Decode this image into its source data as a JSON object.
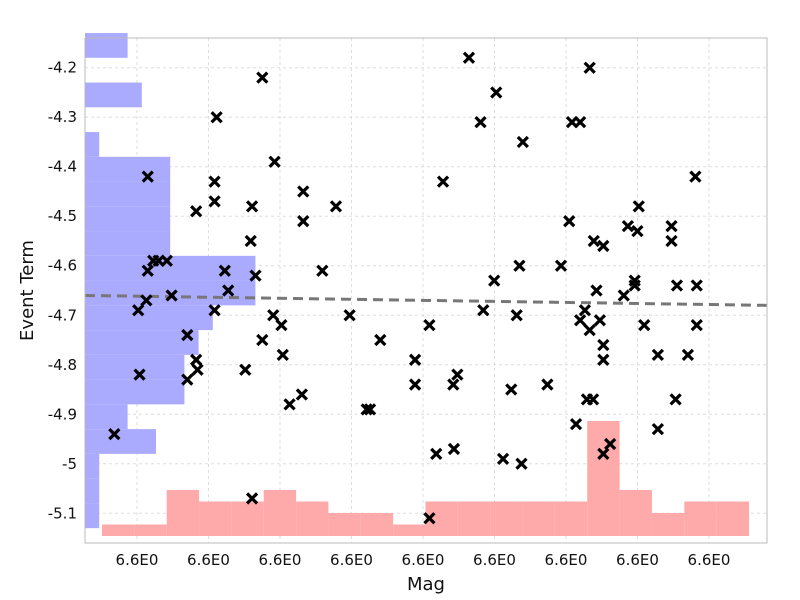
{
  "chart_data": {
    "type": "scatter",
    "xlabel": "Mag",
    "ylabel": "Event Term",
    "x_tick_labels": [
      "6.6E0",
      "6.6E0",
      "6.6E0",
      "6.6E0",
      "6.6E0",
      "6.6E0",
      "6.6E0",
      "6.6E0",
      "6.6E0"
    ],
    "y_ticks": [
      -4.2,
      -4.3,
      -4.4,
      -4.5,
      -4.6,
      -4.7,
      -4.8,
      -4.9,
      -5.0,
      -5.1
    ],
    "y_tick_labels": [
      "-4.2",
      "-4.3",
      "-4.4",
      "-4.5",
      "-4.6",
      "-4.7",
      "-4.8",
      "-4.9",
      "-5",
      "-5.1"
    ],
    "xlim": [
      0,
      1
    ],
    "ylim": [
      -5.16,
      -4.14
    ],
    "grid": true,
    "marker": "x",
    "colors": {
      "points": "#000000",
      "trend": "#777777",
      "y_hist": "#aaaaff",
      "x_hist": "#ffaaaa",
      "grid": "#dddddd",
      "frame": "#bbbbbb"
    },
    "points": [
      [
        0.043,
        -4.94
      ],
      [
        0.08,
        -4.82
      ],
      [
        0.078,
        -4.69
      ],
      [
        0.09,
        -4.67
      ],
      [
        0.092,
        -4.61
      ],
      [
        0.1,
        -4.59
      ],
      [
        0.108,
        -4.59
      ],
      [
        0.12,
        -4.59
      ],
      [
        0.127,
        -4.66
      ],
      [
        0.092,
        -4.42
      ],
      [
        0.15,
        -4.83
      ],
      [
        0.15,
        -4.74
      ],
      [
        0.163,
        -4.79
      ],
      [
        0.165,
        -4.81
      ],
      [
        0.163,
        -4.49
      ],
      [
        0.19,
        -4.43
      ],
      [
        0.19,
        -4.47
      ],
      [
        0.193,
        -4.3
      ],
      [
        0.19,
        -4.69
      ],
      [
        0.205,
        -4.61
      ],
      [
        0.21,
        -4.65
      ],
      [
        0.235,
        -4.81
      ],
      [
        0.245,
        -4.48
      ],
      [
        0.243,
        -4.55
      ],
      [
        0.25,
        -4.62
      ],
      [
        0.26,
        -4.75
      ],
      [
        0.26,
        -4.22
      ],
      [
        0.278,
        -4.39
      ],
      [
        0.276,
        -4.7
      ],
      [
        0.288,
        -4.72
      ],
      [
        0.29,
        -4.78
      ],
      [
        0.3,
        -4.88
      ],
      [
        0.318,
        -4.86
      ],
      [
        0.32,
        -4.45
      ],
      [
        0.32,
        -4.51
      ],
      [
        0.348,
        -4.61
      ],
      [
        0.368,
        -4.48
      ],
      [
        0.388,
        -4.7
      ],
      [
        0.413,
        -4.89
      ],
      [
        0.418,
        -4.89
      ],
      [
        0.433,
        -4.75
      ],
      [
        0.484,
        -4.79
      ],
      [
        0.484,
        -4.84
      ],
      [
        0.505,
        -4.72
      ],
      [
        0.515,
        -4.98
      ],
      [
        0.525,
        -4.43
      ],
      [
        0.54,
        -4.84
      ],
      [
        0.546,
        -4.82
      ],
      [
        0.541,
        -4.97
      ],
      [
        0.563,
        -4.18
      ],
      [
        0.58,
        -4.31
      ],
      [
        0.584,
        -4.69
      ],
      [
        0.6,
        -4.63
      ],
      [
        0.603,
        -4.25
      ],
      [
        0.613,
        -4.99
      ],
      [
        0.625,
        -4.85
      ],
      [
        0.633,
        -4.7
      ],
      [
        0.637,
        -4.6
      ],
      [
        0.64,
        -5.0
      ],
      [
        0.642,
        -4.35
      ],
      [
        0.678,
        -4.84
      ],
      [
        0.698,
        -4.6
      ],
      [
        0.71,
        -4.51
      ],
      [
        0.714,
        -4.31
      ],
      [
        0.72,
        -4.92
      ],
      [
        0.726,
        -4.71
      ],
      [
        0.726,
        -4.31
      ],
      [
        0.733,
        -4.69
      ],
      [
        0.736,
        -4.87
      ],
      [
        0.74,
        -4.73
      ],
      [
        0.745,
        -4.87
      ],
      [
        0.74,
        -4.2
      ],
      [
        0.746,
        -4.55
      ],
      [
        0.75,
        -4.65
      ],
      [
        0.755,
        -4.71
      ],
      [
        0.76,
        -4.56
      ],
      [
        0.76,
        -4.76
      ],
      [
        0.76,
        -4.98
      ],
      [
        0.76,
        -4.79
      ],
      [
        0.77,
        -4.96
      ],
      [
        0.79,
        -4.66
      ],
      [
        0.796,
        -4.52
      ],
      [
        0.806,
        -4.64
      ],
      [
        0.806,
        -4.63
      ],
      [
        0.81,
        -4.53
      ],
      [
        0.812,
        -4.48
      ],
      [
        0.82,
        -4.72
      ],
      [
        0.84,
        -4.78
      ],
      [
        0.84,
        -4.93
      ],
      [
        0.86,
        -4.55
      ],
      [
        0.86,
        -4.52
      ],
      [
        0.868,
        -4.64
      ],
      [
        0.866,
        -4.87
      ],
      [
        0.884,
        -4.78
      ],
      [
        0.895,
        -4.42
      ],
      [
        0.897,
        -4.64
      ],
      [
        0.897,
        -4.72
      ],
      [
        0.245,
        -5.07
      ],
      [
        0.505,
        -5.11
      ]
    ],
    "trend_line": {
      "x": [
        0,
        1
      ],
      "y": [
        -4.66,
        -4.68
      ]
    },
    "y_histogram": {
      "bin_edges": [
        -5.13,
        -5.08,
        -5.03,
        -4.98,
        -4.93,
        -4.88,
        -4.83,
        -4.78,
        -4.73,
        -4.68,
        -4.63,
        -4.58,
        -4.53,
        -4.48,
        -4.43,
        -4.38,
        -4.33,
        -4.28,
        -4.23,
        -4.18,
        -4.13
      ],
      "counts": [
        1,
        1,
        1,
        5,
        3,
        7,
        7,
        8,
        9,
        12,
        12,
        6,
        6,
        6,
        6,
        1,
        0,
        4,
        0,
        3
      ]
    },
    "x_histogram": {
      "bin_edges": [
        0.0,
        0.05,
        0.1,
        0.15,
        0.2,
        0.25,
        0.3,
        0.35,
        0.4,
        0.45,
        0.5,
        0.55,
        0.6,
        0.65,
        0.7,
        0.75,
        0.8,
        0.85,
        0.9,
        0.95,
        1.0
      ],
      "counts": [
        1,
        1,
        4,
        3,
        3,
        4,
        3,
        2,
        2,
        1,
        3,
        3,
        3,
        3,
        3,
        10,
        4,
        2,
        3,
        3
      ]
    }
  }
}
